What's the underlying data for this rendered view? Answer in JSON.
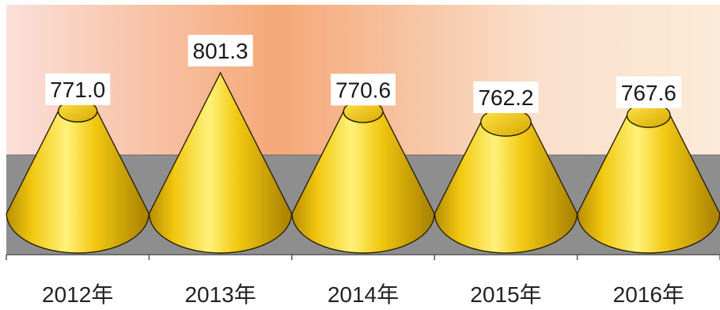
{
  "chart_data": {
    "type": "bar",
    "style": "3d-cone",
    "categories": [
      "2012年",
      "2013年",
      "2014年",
      "2015年",
      "2016年"
    ],
    "values": [
      771.0,
      801.3,
      770.6,
      762.2,
      767.6
    ],
    "value_labels": [
      "771.0",
      "801.3",
      "770.6",
      "762.2",
      "767.6"
    ],
    "ylim": [
      690,
      801.3
    ],
    "grid": false,
    "colors": {
      "cone": "#F2C811",
      "cone_light": "#FFF27A",
      "cone_dark": "#C49A00",
      "floor": "#8E8E8E",
      "backwall_left": "#FBE0DA",
      "backwall_mid": "#F5A878",
      "backwall_right": "#FBE9D6"
    }
  }
}
